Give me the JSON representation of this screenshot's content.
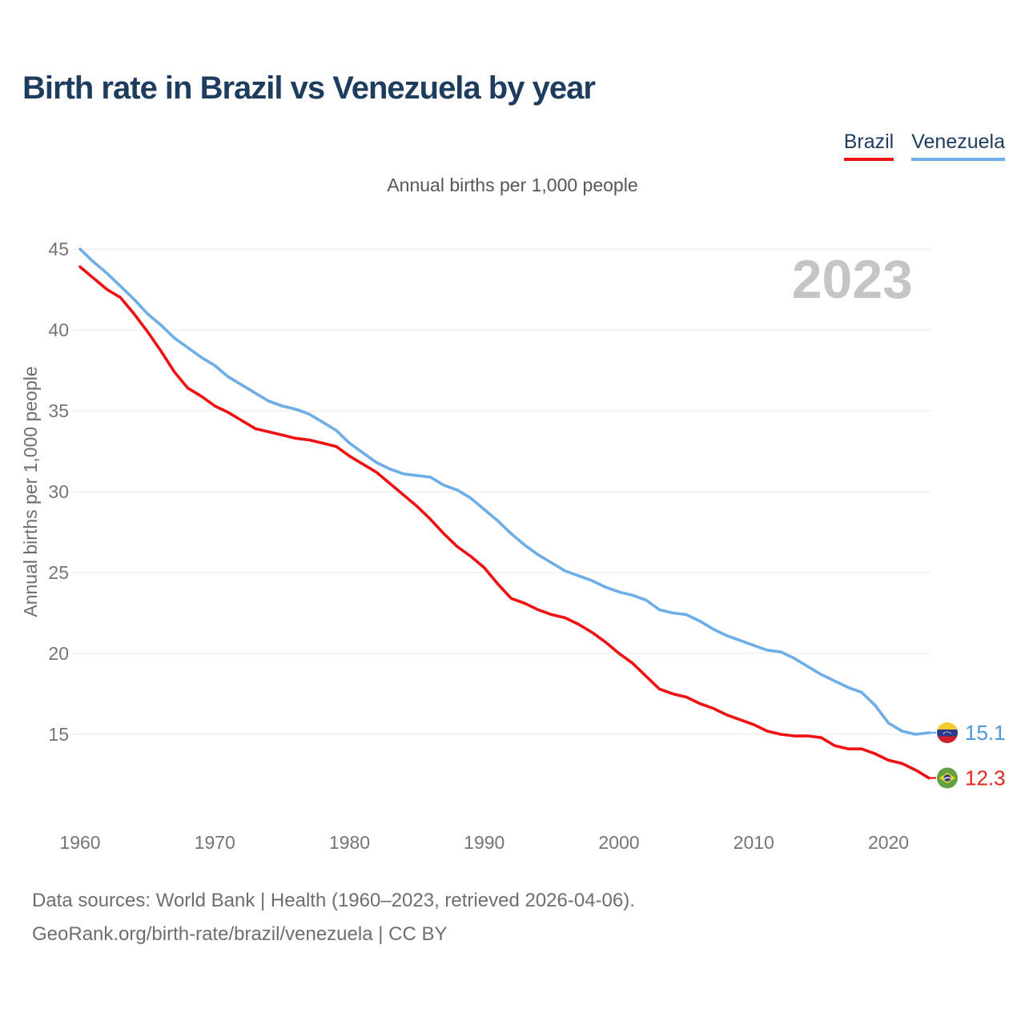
{
  "header": {
    "title": "Birth rate in Brazil vs Venezuela by year"
  },
  "legend": {
    "items": [
      {
        "label": "Brazil",
        "color": "#ee1212"
      },
      {
        "label": "Venezuela",
        "color": "#6dade8"
      }
    ]
  },
  "footer": {
    "line1": "Data sources: World Bank | Health (1960–2023, retrieved 2026-04-06).",
    "line2": "GeoRank.org/birth-rate/brazil/venezuela | CC BY"
  },
  "chart_data": {
    "type": "line",
    "title": "Birth rate in Brazil vs Venezuela by year",
    "subtitle": "Annual births per 1,000 people",
    "ylabel": "Annual births per 1,000 people",
    "watermark": "2023",
    "grid": "horizontal",
    "legend_position": "top-right",
    "y_ticks": [
      15,
      20,
      25,
      30,
      35,
      40,
      45
    ],
    "x_ticks": [
      1960,
      1970,
      1980,
      1990,
      2000,
      2010,
      2020
    ],
    "ylim": [
      12,
      45
    ],
    "xlim": [
      1960,
      2023
    ],
    "x": [
      1960,
      1961,
      1962,
      1963,
      1964,
      1965,
      1966,
      1967,
      1968,
      1969,
      1970,
      1971,
      1972,
      1973,
      1974,
      1975,
      1976,
      1977,
      1978,
      1979,
      1980,
      1981,
      1982,
      1983,
      1984,
      1985,
      1986,
      1987,
      1988,
      1989,
      1990,
      1991,
      1992,
      1993,
      1994,
      1995,
      1996,
      1997,
      1998,
      1999,
      2000,
      2001,
      2002,
      2003,
      2004,
      2005,
      2006,
      2007,
      2008,
      2009,
      2010,
      2011,
      2012,
      2013,
      2014,
      2015,
      2016,
      2017,
      2018,
      2019,
      2020,
      2021,
      2022,
      2023
    ],
    "series": [
      {
        "name": "Venezuela",
        "color": "#6dade8",
        "end_label": "15.1",
        "flag": "venezuela",
        "values": [
          45.0,
          44.2,
          43.5,
          42.7,
          41.9,
          41.0,
          40.3,
          39.5,
          38.9,
          38.3,
          37.8,
          37.1,
          36.6,
          36.1,
          35.6,
          35.3,
          35.1,
          34.8,
          34.3,
          33.8,
          33.0,
          32.4,
          31.8,
          31.4,
          31.1,
          31.0,
          30.9,
          30.4,
          30.1,
          29.6,
          28.9,
          28.2,
          27.4,
          26.7,
          26.1,
          25.6,
          25.1,
          24.8,
          24.5,
          24.1,
          23.8,
          23.6,
          23.3,
          22.7,
          22.5,
          22.4,
          22.0,
          21.5,
          21.1,
          20.8,
          20.5,
          20.2,
          20.1,
          19.7,
          19.2,
          18.7,
          18.3,
          17.9,
          17.6,
          16.8,
          15.7,
          15.2,
          15.0,
          15.1
        ]
      },
      {
        "name": "Brazil",
        "color": "#ee1212",
        "end_label": "12.3",
        "flag": "brazil",
        "values": [
          43.9,
          43.2,
          42.5,
          42.0,
          41.0,
          39.9,
          38.7,
          37.4,
          36.4,
          35.9,
          35.3,
          34.9,
          34.4,
          33.9,
          33.7,
          33.5,
          33.3,
          33.2,
          33.0,
          32.8,
          32.2,
          31.7,
          31.2,
          30.5,
          29.8,
          29.1,
          28.3,
          27.4,
          26.6,
          26.0,
          25.3,
          24.3,
          23.4,
          23.1,
          22.7,
          22.4,
          22.2,
          21.8,
          21.3,
          20.7,
          20.0,
          19.4,
          18.6,
          17.8,
          17.5,
          17.3,
          16.9,
          16.6,
          16.2,
          15.9,
          15.6,
          15.2,
          15.0,
          14.9,
          14.9,
          14.8,
          14.3,
          14.1,
          14.1,
          13.8,
          13.4,
          13.2,
          12.8,
          12.3
        ]
      }
    ]
  }
}
